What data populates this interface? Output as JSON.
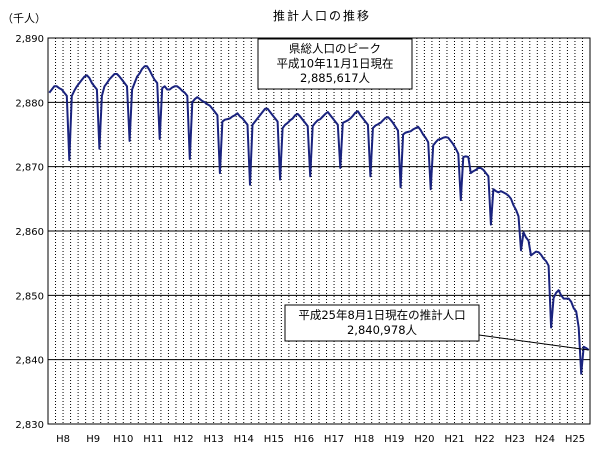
{
  "chart_data": {
    "type": "line",
    "title": "推計人口の推移",
    "ylabel": "（千人）",
    "ylim": [
      2830,
      2890
    ],
    "yticks": [
      2830,
      2840,
      2850,
      2860,
      2870,
      2880,
      2890
    ],
    "ytick_labels": [
      "2,830",
      "2,840",
      "2,850",
      "2,860",
      "2,870",
      "2,880",
      "2,890"
    ],
    "x_start_year": "H8",
    "x_end_year": "H25",
    "xtick_labels": [
      "H8",
      "H9",
      "H10",
      "H11",
      "H12",
      "H13",
      "H14",
      "H15",
      "H16",
      "H17",
      "H18",
      "H19",
      "H20",
      "H21",
      "H22",
      "H23",
      "H24",
      "H25"
    ],
    "grid": {
      "vertical": "dotted",
      "horizontal": "solid"
    },
    "series": [
      {
        "color": "#1a237e",
        "years": [
          "H8",
          "H9",
          "H10",
          "H11",
          "H12",
          "H13",
          "H14",
          "H15",
          "H16",
          "H17",
          "H18",
          "H19",
          "H20",
          "H21",
          "H22",
          "H23",
          "H24",
          "H25"
        ],
        "monthly_values": [
          [
            2881.5,
            2882.0,
            2882.5,
            2882.5,
            2882.2,
            2882.0,
            2881.5,
            2881.0,
            2871.0,
            2881.0,
            2881.8,
            2882.5
          ],
          [
            2883.0,
            2883.5,
            2884.0,
            2884.2,
            2883.8,
            2883.0,
            2882.5,
            2882.0,
            2872.8,
            2881.0,
            2882.5,
            2883.0
          ],
          [
            2883.6,
            2884.0,
            2884.4,
            2884.4,
            2884.0,
            2883.5,
            2883.0,
            2882.5,
            2874.0,
            2882.0,
            2883.0,
            2884.0
          ],
          [
            2884.5,
            2885.2,
            2885.6,
            2885.6,
            2885.0,
            2884.2,
            2883.5,
            2883.0,
            2874.3,
            2882.2,
            2882.5,
            2882.0
          ],
          [
            2882.0,
            2882.3,
            2882.5,
            2882.5,
            2882.2,
            2881.8,
            2881.5,
            2881.0,
            2871.2,
            2880.0,
            2880.5,
            2880.8
          ],
          [
            2880.5,
            2880.2,
            2880.0,
            2879.7,
            2879.5,
            2879.0,
            2878.5,
            2878.0,
            2869.0,
            2877.0,
            2877.3,
            2877.4
          ],
          [
            2877.5,
            2877.8,
            2878.0,
            2878.3,
            2877.8,
            2877.5,
            2877.0,
            2876.5,
            2867.2,
            2876.5,
            2877.0,
            2877.5
          ],
          [
            2878.0,
            2878.5,
            2879.0,
            2879.0,
            2878.5,
            2878.0,
            2877.5,
            2877.0,
            2868.0,
            2876.0,
            2876.5,
            2876.8
          ],
          [
            2877.2,
            2877.5,
            2878.0,
            2878.2,
            2877.8,
            2877.3,
            2876.8,
            2876.3,
            2868.5,
            2876.3,
            2876.8,
            2877.2
          ],
          [
            2877.4,
            2877.8,
            2878.2,
            2878.5,
            2878.0,
            2877.5,
            2877.0,
            2876.5,
            2869.8,
            2876.8,
            2877.0,
            2877.2
          ],
          [
            2877.5,
            2877.9,
            2878.4,
            2878.6,
            2878.0,
            2877.5,
            2877.0,
            2876.5,
            2868.5,
            2876.0,
            2876.4,
            2876.6
          ],
          [
            2876.8,
            2877.2,
            2877.6,
            2877.7,
            2877.3,
            2876.8,
            2876.2,
            2875.6,
            2866.8,
            2875.0,
            2875.3,
            2875.4
          ],
          [
            2875.5,
            2875.8,
            2876.0,
            2876.2,
            2875.7,
            2875.0,
            2874.5,
            2873.8,
            2866.5,
            2873.3,
            2873.8,
            2874.2
          ],
          [
            2874.3,
            2874.5,
            2874.6,
            2874.5,
            2874.0,
            2873.5,
            2872.8,
            2872.0,
            2864.8,
            2871.5,
            2871.6,
            2871.5
          ],
          [
            2869.0,
            2869.3,
            2869.5,
            2869.8,
            2869.8,
            2869.5,
            2869.0,
            2868.5,
            2861.0,
            2866.5,
            2866.2,
            2866.0
          ],
          [
            2866.2,
            2866.0,
            2865.8,
            2865.5,
            2865.0,
            2864.0,
            2863.3,
            2862.3,
            2857.0,
            2859.8,
            2859.0,
            2858.5
          ],
          [
            2856.2,
            2856.5,
            2856.8,
            2856.7,
            2856.3,
            2855.7,
            2855.3,
            2854.6,
            2845.0,
            2849.6,
            2850.4,
            2850.8
          ],
          [
            2850.0,
            2849.5,
            2849.5,
            2849.5,
            2849.0,
            2848.0,
            2847.5,
            2845.0,
            2837.8,
            2842.0,
            2841.8,
            2841.5
          ]
        ]
      }
    ],
    "annotations": [
      {
        "lines": [
          "県総人口のピーク",
          "平成10年11月1日現在",
          "2,885,617人"
        ],
        "points_to": {
          "year": "H11",
          "month": 3
        }
      },
      {
        "lines": [
          "平成25年8月1日現在の推計人口",
          "2,840,978人"
        ],
        "points_to": {
          "year": "H25",
          "month": 12
        }
      }
    ]
  }
}
